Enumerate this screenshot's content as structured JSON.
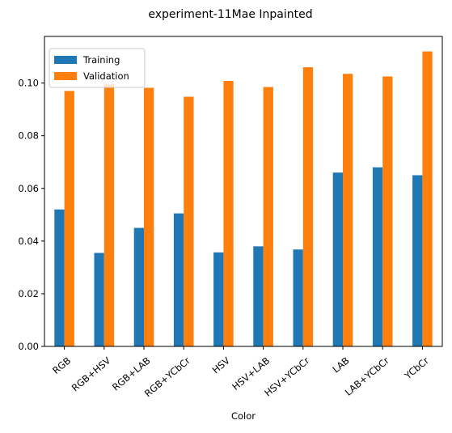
{
  "chart_data": {
    "type": "bar",
    "title": "experiment-11Mae Inpainted",
    "xlabel": "Color",
    "ylabel": "",
    "categories": [
      "RGB",
      "RGB+HSV",
      "RGB+LAB",
      "RGB+YCbCr",
      "HSV",
      "HSV+LAB",
      "HSV+YCbCr",
      "LAB",
      "LAB+YCbCr",
      "YCbCr"
    ],
    "series": [
      {
        "name": "Training",
        "color": "#1f77b4",
        "values": [
          0.052,
          0.0355,
          0.045,
          0.0505,
          0.0357,
          0.038,
          0.0368,
          0.066,
          0.068,
          0.065
        ]
      },
      {
        "name": "Validation",
        "color": "#ff7f0e",
        "values": [
          0.097,
          0.0995,
          0.0982,
          0.0948,
          0.1008,
          0.0985,
          0.106,
          0.1035,
          0.1025,
          0.112
        ]
      }
    ],
    "ylim": [
      0,
      0.1177
    ],
    "yticks": [
      "0.00",
      "0.02",
      "0.04",
      "0.06",
      "0.08",
      "0.10"
    ],
    "legend_position": "top-left",
    "grid": false
  }
}
